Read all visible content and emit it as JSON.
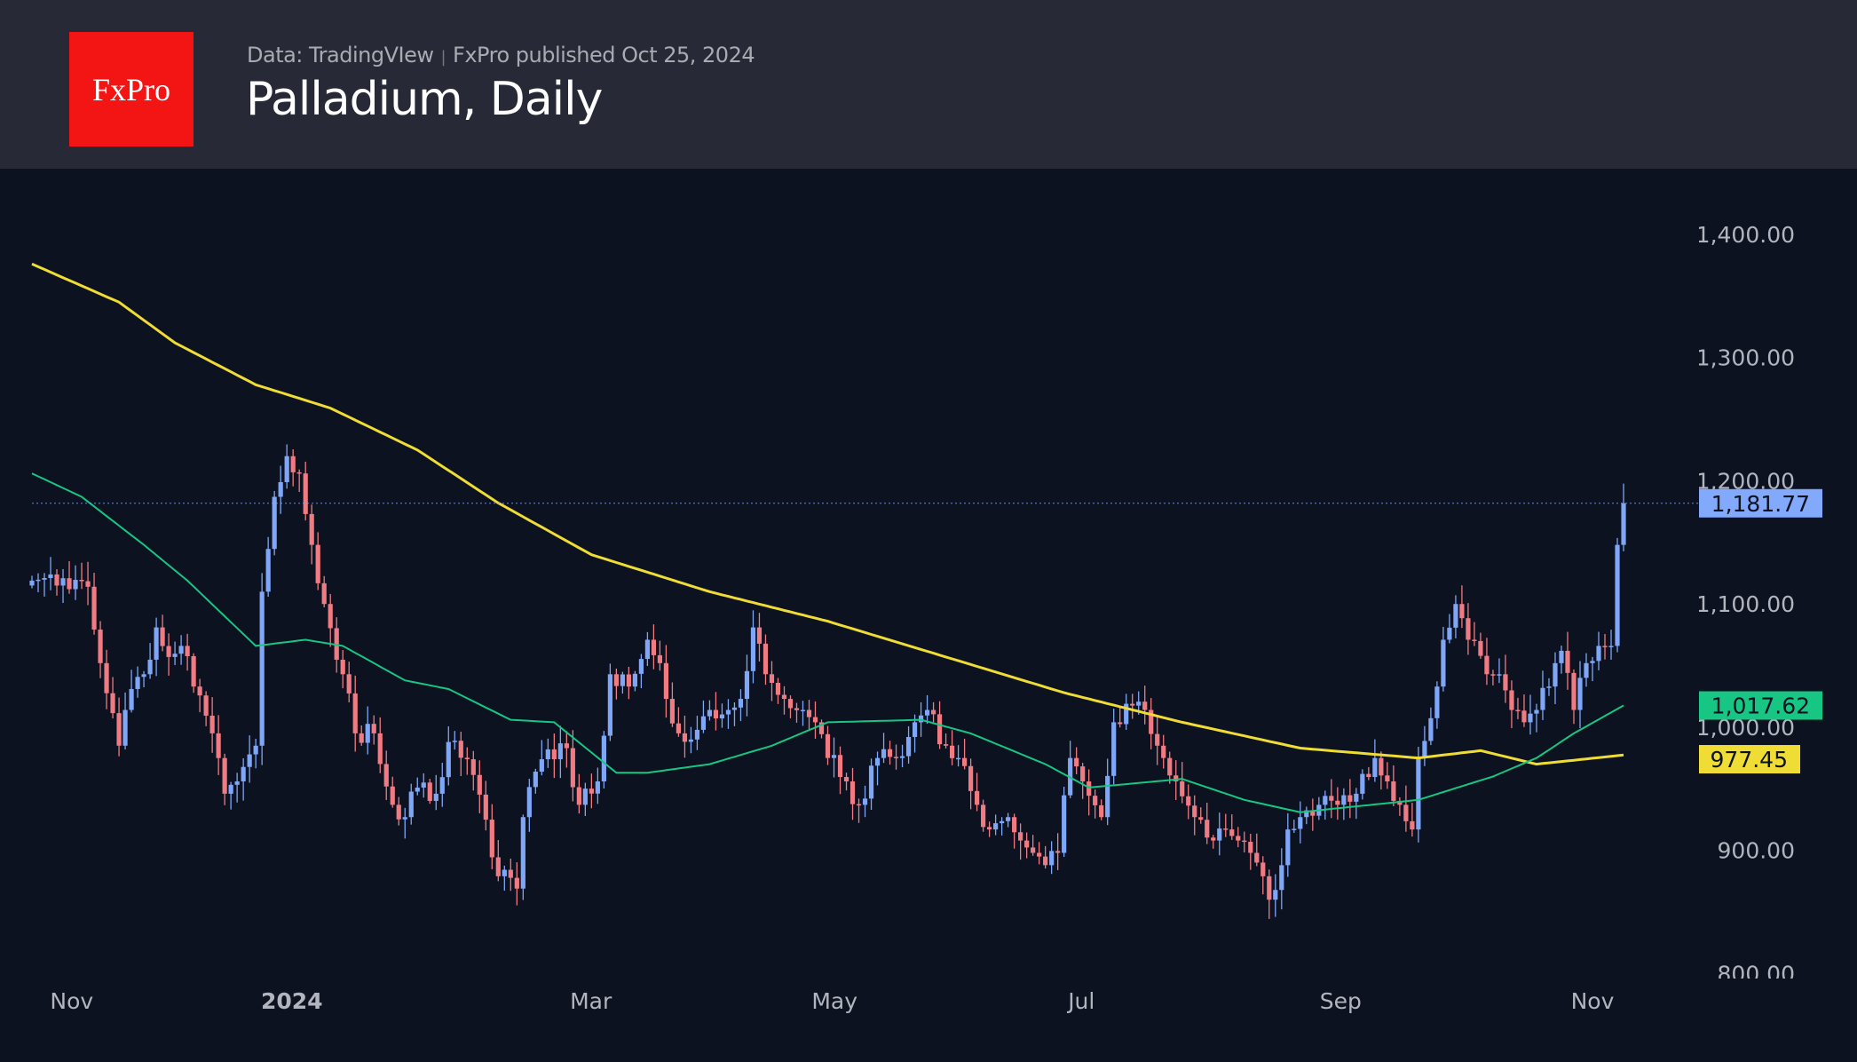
{
  "header": {
    "logo_text": "FxPro",
    "data_source": "Data: TradingVIew",
    "published": "FxPro published Oct 25, 2024",
    "title": "Palladium, Daily"
  },
  "colors": {
    "up": "#7fa6f7",
    "down": "#f07b82",
    "ma_fast": "#17c683",
    "ma_slow": "#efdc35",
    "last": "#82a9fb"
  },
  "chart_data": {
    "type": "candlestick",
    "title": "Palladium, Daily",
    "ylim": [
      800,
      1450
    ],
    "y_ticks": [
      "1,400.00",
      "1,300.00",
      "1,200.00",
      "1,100.00",
      "1,000.00",
      "900.00",
      "800.00"
    ],
    "y_tick_values": [
      1400,
      1300,
      1200,
      1100,
      1000,
      900,
      800
    ],
    "x_ticks": [
      "Nov",
      "2024",
      "Mar",
      "May",
      "Jul",
      "Sep",
      "Nov"
    ],
    "x_tick_days": [
      6.4,
      41.8,
      89.9,
      129.1,
      168.8,
      210.5,
      251.0
    ],
    "closes": {
      "t": [
        0,
        3,
        9,
        11,
        14,
        15,
        18,
        20,
        22,
        24,
        26,
        29,
        31,
        33,
        36,
        37,
        39,
        41,
        43,
        45,
        47,
        50,
        52,
        55,
        58,
        60,
        62,
        65,
        67,
        70,
        73,
        75,
        78,
        79,
        82,
        84,
        86,
        88,
        91,
        93,
        96,
        99,
        101,
        102,
        104,
        106,
        109,
        112,
        114,
        116,
        118,
        121,
        124,
        126,
        128,
        131,
        133,
        136,
        139,
        142,
        144,
        147,
        149,
        152,
        154,
        157,
        159,
        161,
        163,
        165,
        167,
        169,
        172,
        174,
        176,
        179,
        181,
        182,
        184,
        187,
        190,
        192,
        194,
        196,
        198,
        199,
        201,
        202,
        204,
        207,
        210,
        213,
        216,
        218,
        220,
        222,
        223,
        226,
        227,
        229,
        231,
        234,
        236,
        238,
        240,
        242,
        244,
        246,
        248,
        250,
        252,
        254,
        255,
        256
      ],
      "value": [
        1119,
        1124,
        1114,
        1052,
        985,
        1014,
        1043,
        1081,
        1057,
        1066,
        1033,
        995,
        946,
        956,
        985,
        1110,
        1187,
        1220,
        1206,
        1148,
        1100,
        1043,
        995,
        995,
        937,
        927,
        951,
        946,
        988,
        974,
        925,
        879,
        869,
        927,
        974,
        974,
        983,
        937,
        956,
        1043,
        1033,
        1071,
        1052,
        1023,
        995,
        990,
        1014,
        1014,
        1023,
        1081,
        1043,
        1023,
        1014,
        1004,
        975,
        956,
        937,
        975,
        975,
        1004,
        1014,
        985,
        975,
        937,
        917,
        927,
        908,
        898,
        888,
        898,
        975,
        956,
        927,
        1004,
        1019,
        1014,
        985,
        975,
        956,
        927,
        908,
        917,
        908,
        898,
        879,
        860,
        888,
        917,
        927,
        937,
        937,
        946,
        975,
        956,
        937,
        917,
        975,
        1033,
        1071,
        1100,
        1071,
        1043,
        1043,
        1014,
        1004,
        1014,
        1033,
        1062,
        1014,
        1052,
        1066,
        1066,
        1148,
        1181.77
      ]
    },
    "series": [
      {
        "name": "MA slow",
        "color": "#efdc35",
        "last_label": "977.45",
        "t": [
          0,
          14,
          23,
          36,
          48,
          62,
          75,
          90,
          109,
          128,
          147,
          166,
          185,
          204,
          223,
          233,
          242,
          256
        ],
        "value": [
          1376,
          1345,
          1312,
          1278,
          1259,
          1225,
          1182,
          1140,
          1110,
          1086,
          1057,
          1028,
          1004,
          983,
          975,
          981,
          970,
          977.45
        ]
      },
      {
        "name": "MA fast",
        "color": "#17c683",
        "last_label": "1,017.62",
        "t": [
          0,
          8,
          18,
          25,
          36,
          44,
          50,
          60,
          67,
          77,
          84,
          94,
          99,
          109,
          119,
          128,
          143,
          151,
          163,
          170,
          185,
          195,
          204,
          223,
          235,
          242,
          248,
          256
        ],
        "value": [
          1206,
          1187,
          1148,
          1119,
          1066,
          1071,
          1066,
          1038,
          1031,
          1006,
          1004,
          963,
          963,
          970,
          985,
          1004,
          1006,
          995,
          970,
          951,
          958,
          941,
          931,
          941,
          960,
          975,
          995,
          1017.62
        ]
      }
    ],
    "last_price": 1181.77,
    "last_price_label": "1,181.77"
  }
}
